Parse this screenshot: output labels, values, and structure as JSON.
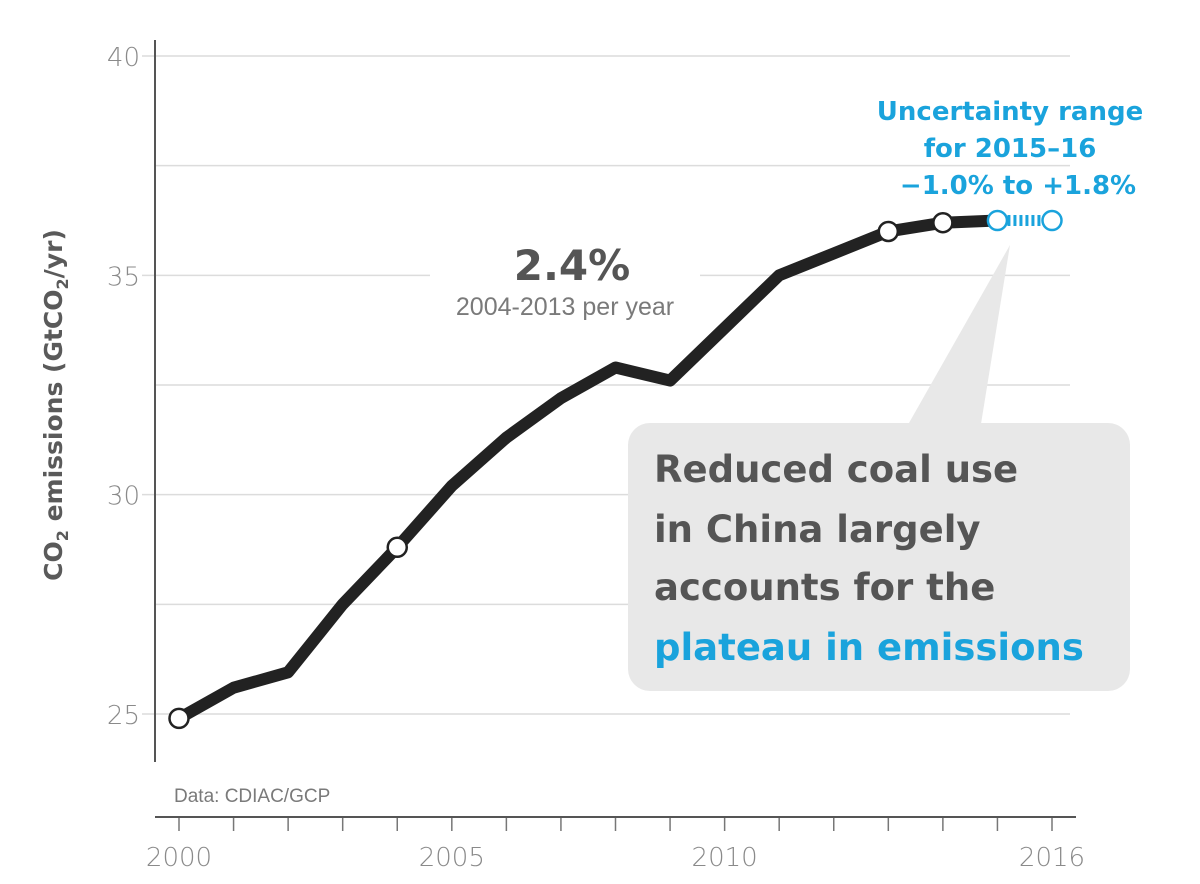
{
  "chart_data": {
    "type": "line",
    "ylabel": {
      "main": "CO",
      "sub1": "2",
      "mid": " emissions (GtCO",
      "sub2": "2",
      "end": "/yr)"
    },
    "xlim": [
      2000,
      2016
    ],
    "ylim": [
      24,
      41
    ],
    "x_ticks": [
      2000,
      2005,
      2010,
      2016
    ],
    "y_ticks": [
      25,
      30,
      35,
      40
    ],
    "y_gridlines": [
      25,
      27.5,
      30,
      32.5,
      35,
      37.5,
      40
    ],
    "grid": true,
    "series": [
      {
        "x": [
          2000,
          2001,
          2002,
          2003,
          2004,
          2005,
          2006,
          2007,
          2008,
          2009,
          2010,
          2011,
          2012,
          2013,
          2014,
          2015
        ],
        "values": [
          24.9,
          25.6,
          25.95,
          27.5,
          28.8,
          30.2,
          31.3,
          32.2,
          32.9,
          32.6,
          33.8,
          35.0,
          35.5,
          36.0,
          36.2,
          36.25
        ],
        "color": "#222222"
      }
    ],
    "marked_points": [
      2000,
      2004,
      2013,
      2014,
      2015
    ],
    "projection": {
      "x_start": 2015,
      "x_end": 2016,
      "value": 36.25,
      "color": "#1aa3dc"
    },
    "annotations": {
      "rate_value": "2.4%",
      "rate_period": "2004-2013 per year",
      "uncertainty_lines": [
        "Uncertainty range",
        "for 2015–16",
        "−1.0% to +1.8%"
      ],
      "callout_lines": [
        "Reduced coal use",
        "in China largely",
        "accounts for the"
      ],
      "callout_highlight": "plateau in emissions",
      "source": "Data: CDIAC/GCP"
    },
    "colors": {
      "line": "#222222",
      "accent": "#1aa3dc",
      "grid": "#dcdcdc",
      "callout_bg": "#e8e8e8"
    }
  }
}
